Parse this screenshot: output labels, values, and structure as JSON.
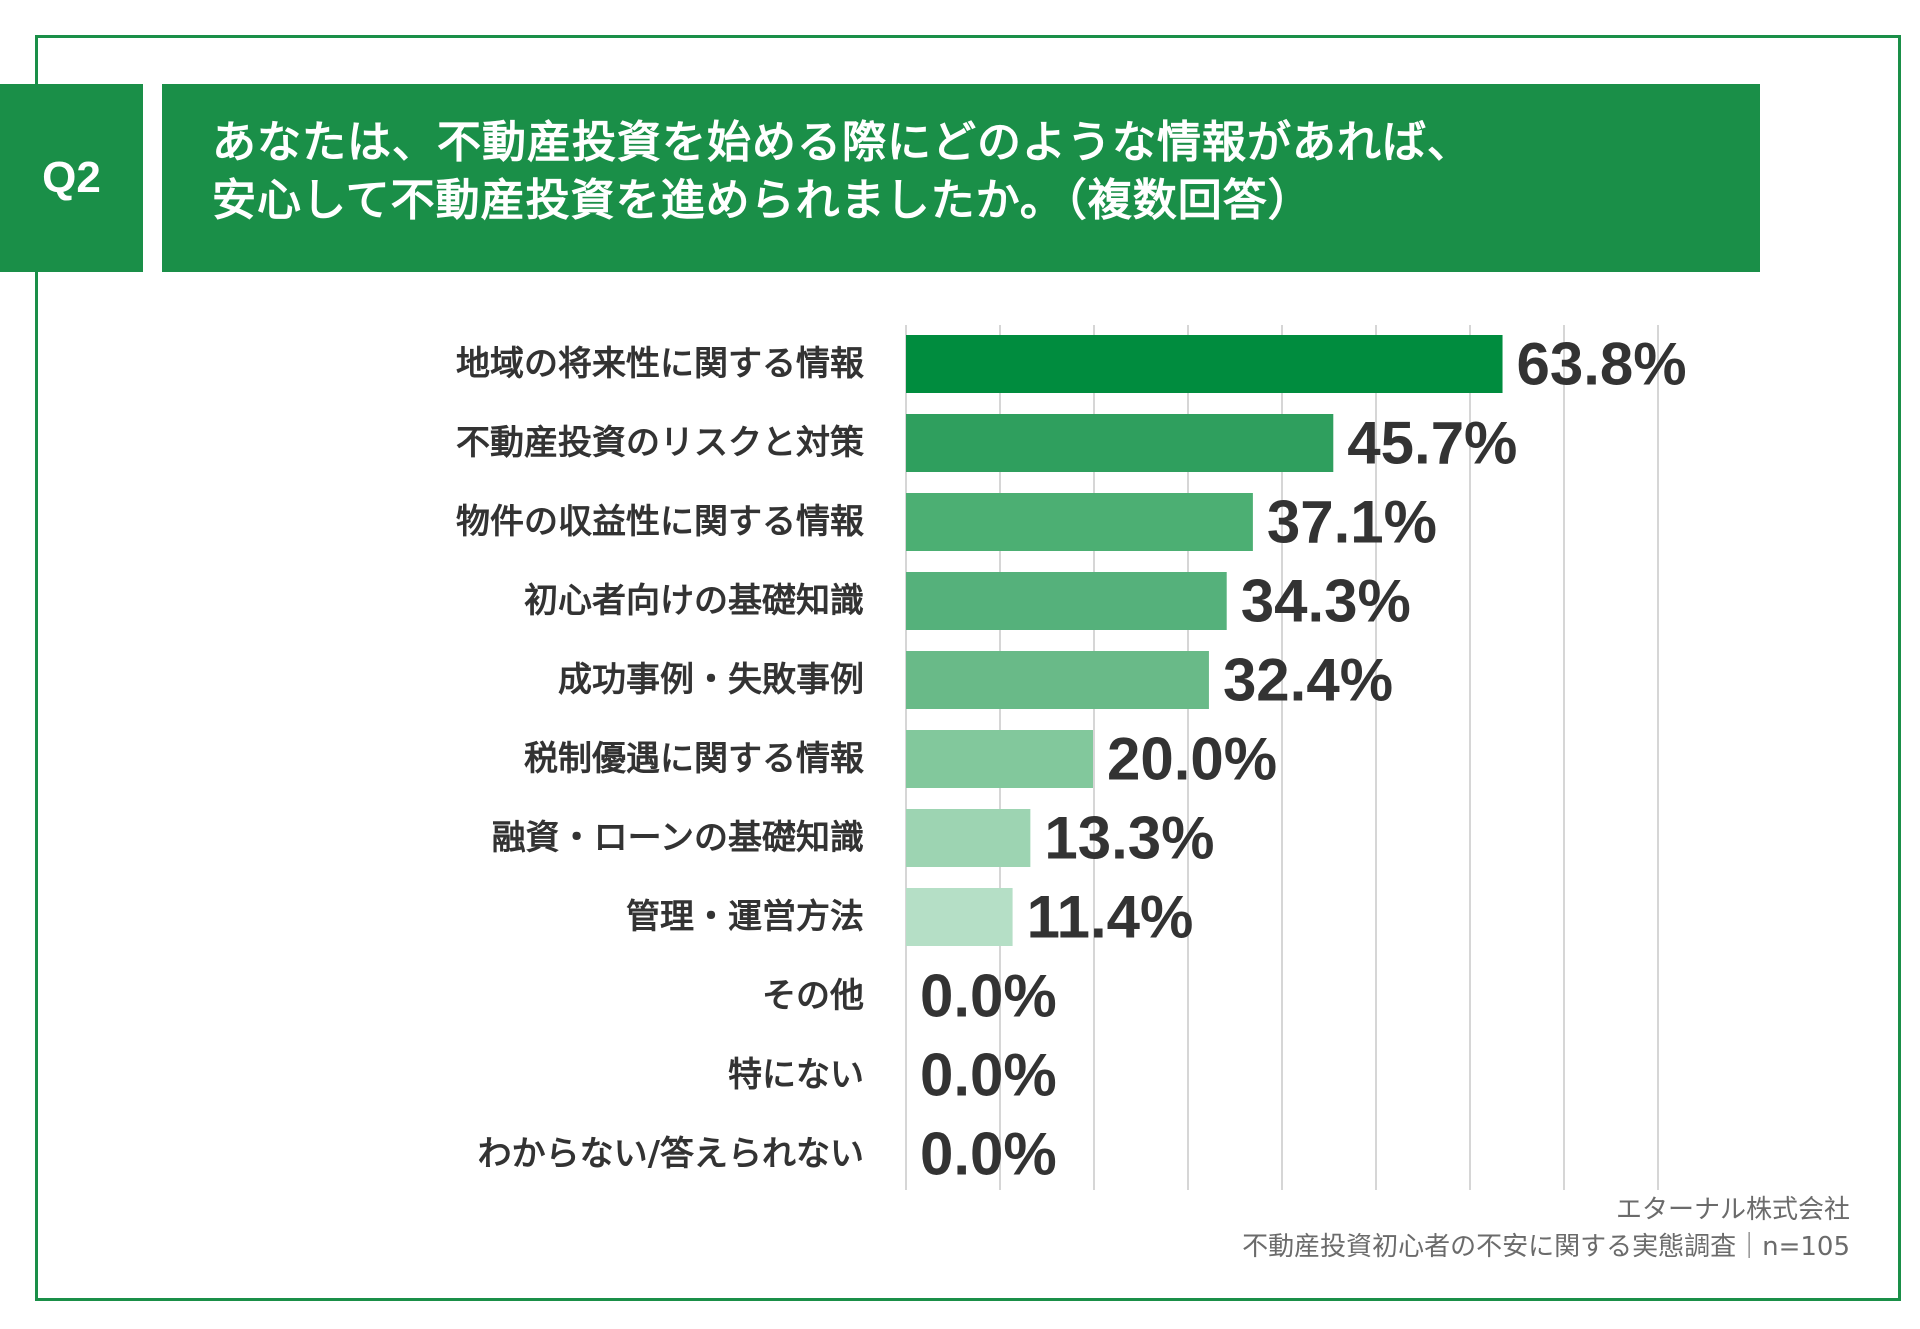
{
  "question": {
    "number": "Q2",
    "line1": "あなたは、不動産投資を始める際にどのような情報があれば、",
    "line2": "安心して不動産投資を進められましたか。（複数回答）"
  },
  "chart_data": {
    "type": "bar",
    "orientation": "horizontal",
    "categories": [
      "地域の将来性に関する情報",
      "不動産投資のリスクと対策",
      "物件の収益性に関する情報",
      "初心者向けの基礎知識",
      "成功事例・失敗事例",
      "税制優遇に関する情報",
      "融資・ローンの基礎知識",
      "管理・運営方法",
      "その他",
      "特にない",
      "わからない/答えられない"
    ],
    "values": [
      63.8,
      45.7,
      37.1,
      34.3,
      32.4,
      20.0,
      13.3,
      11.4,
      0.0,
      0.0,
      0.0
    ],
    "value_labels": [
      "63.8%",
      "45.7%",
      "37.1%",
      "34.3%",
      "32.4%",
      "20.0%",
      "13.3%",
      "11.4%",
      "0.0%",
      "0.0%",
      "0.0%"
    ],
    "bar_colors": [
      "#008c3e",
      "#2f9f5e",
      "#4caf73",
      "#55b17b",
      "#69ba88",
      "#82c89c",
      "#9dd4b2",
      "#b5dfc6",
      "#c6e6d3",
      "#c6e6d3",
      "#c6e6d3"
    ],
    "xlim": [
      0,
      70
    ],
    "grid": true,
    "gridline_count": 8
  },
  "source": {
    "company": "エターナル株式会社",
    "survey": "不動産投資初心者の不安に関する実態調査｜n=105"
  }
}
